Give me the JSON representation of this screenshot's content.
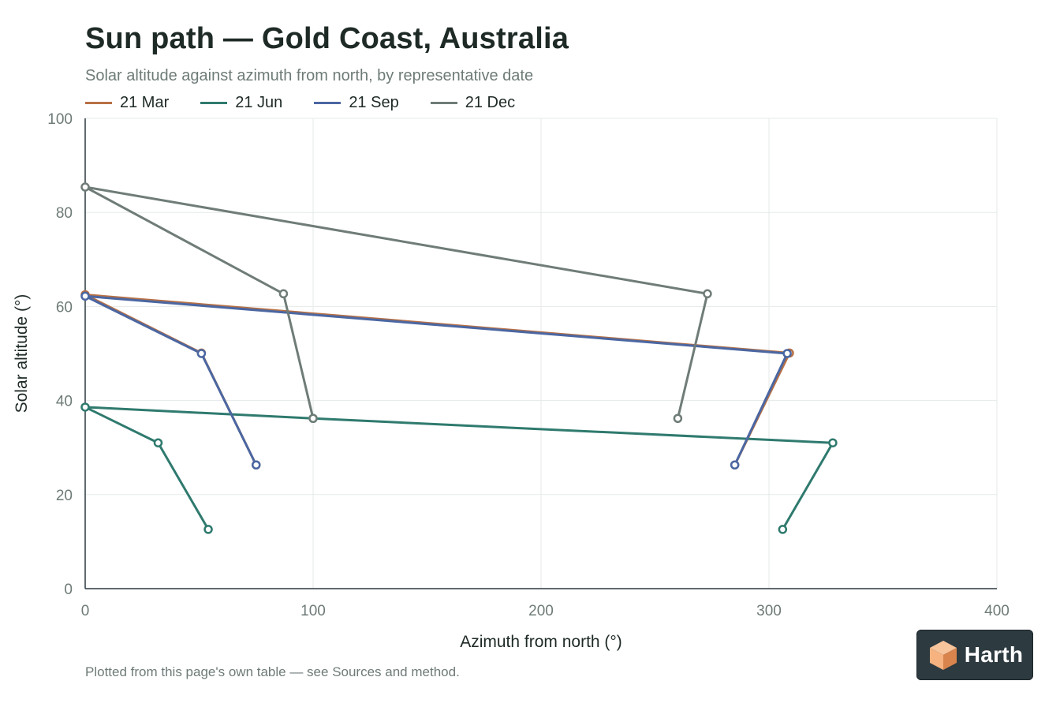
{
  "header": {
    "title": "Sun path — Gold Coast, Australia",
    "subtitle": "Solar altitude against azimuth from north, by representative date"
  },
  "footer": {
    "note": "Plotted from this page's own table — see Sources and method."
  },
  "brand": {
    "logo_text": "Harth",
    "logo_icon": "cube-icon",
    "colors": {
      "background": "#2d3a40",
      "cube_light": "#f6b27f",
      "cube_dark": "#d9844d"
    }
  },
  "chart_data": {
    "type": "line",
    "xlabel": "Azimuth from north (°)",
    "ylabel": "Solar altitude (°)",
    "xlim": [
      0,
      400
    ],
    "ylim": [
      0,
      100
    ],
    "xticks": [
      0,
      100,
      200,
      300,
      400
    ],
    "yticks": [
      0,
      20,
      40,
      60,
      80,
      100
    ],
    "grid": true,
    "legend_position": "top-left",
    "series": [
      {
        "name": "21 Mar",
        "color": "#b87044",
        "points": [
          [
            75,
            26.3
          ],
          [
            51,
            50.1
          ],
          [
            0,
            62.5
          ],
          [
            309,
            50.1
          ],
          [
            285,
            26.3
          ]
        ]
      },
      {
        "name": "21 Jun",
        "color": "#2f7a6e",
        "points": [
          [
            54,
            12.6
          ],
          [
            32,
            31.0
          ],
          [
            0,
            38.6
          ],
          [
            100,
            36.2
          ],
          [
            328,
            31.0
          ],
          [
            306,
            12.6
          ]
        ]
      },
      {
        "name": "21 Sep",
        "color": "#4b67a2",
        "points": [
          [
            75,
            26.3
          ],
          [
            51,
            50.0
          ],
          [
            0,
            62.2
          ],
          [
            308,
            50.0
          ],
          [
            285,
            26.3
          ]
        ]
      },
      {
        "name": "21 Dec",
        "color": "#6f7c77",
        "points": [
          [
            100,
            36.2
          ],
          [
            87,
            62.7
          ],
          [
            0,
            85.4
          ],
          [
            273,
            62.7
          ],
          [
            260,
            36.2
          ]
        ]
      }
    ]
  }
}
